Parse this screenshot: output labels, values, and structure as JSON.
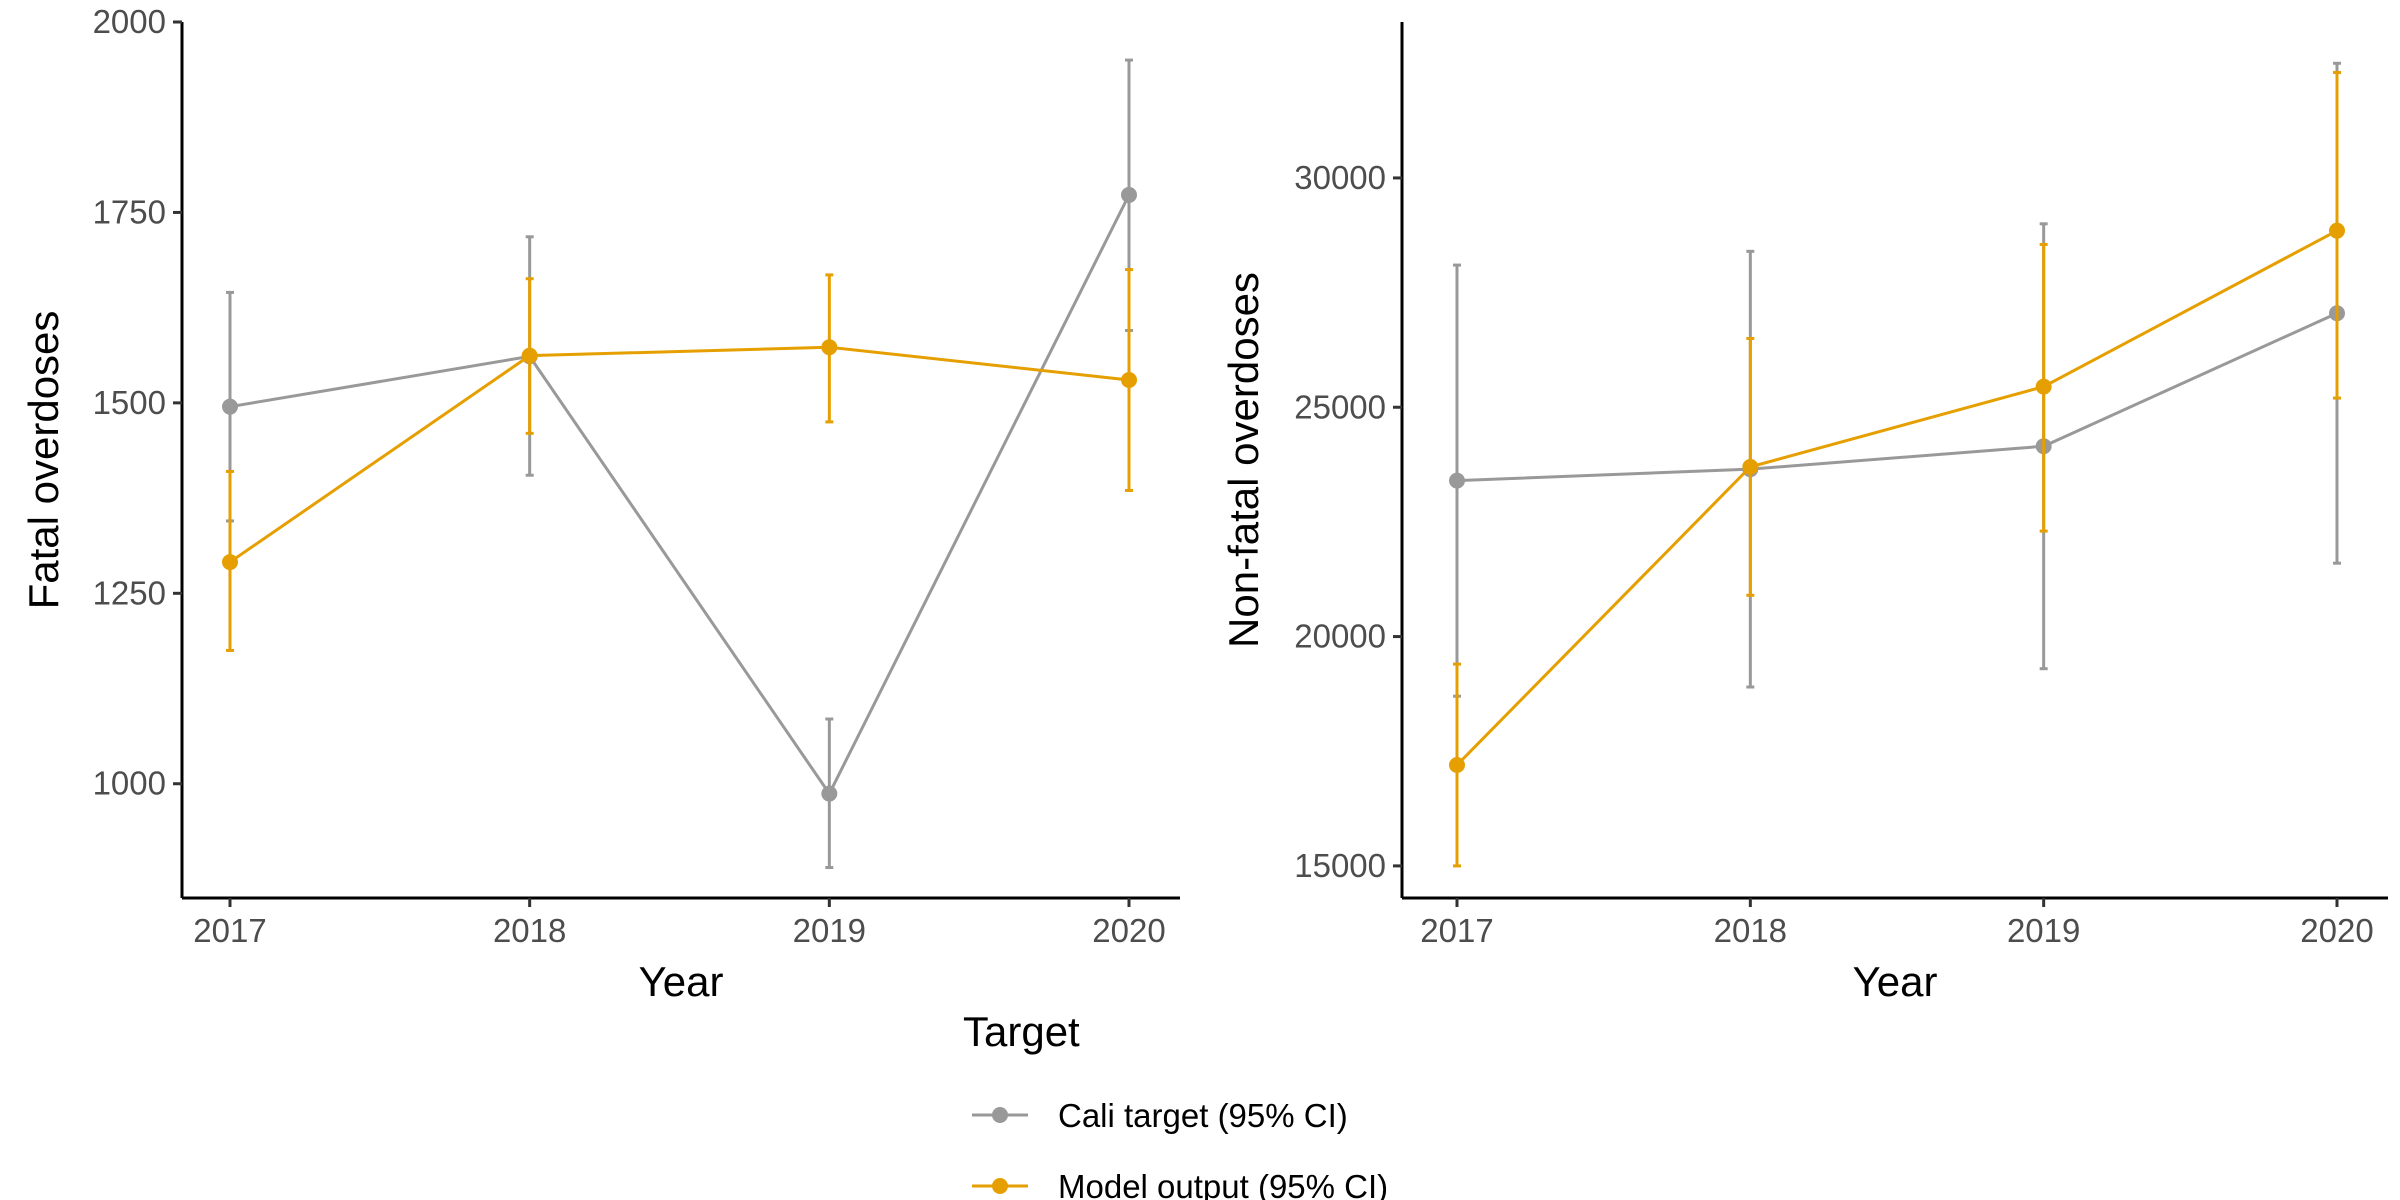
{
  "chart_data": [
    {
      "type": "line",
      "xlabel": "Year",
      "ylabel": "Fatal overdoses",
      "categories": [
        "2017",
        "2018",
        "2019",
        "2020"
      ],
      "ylim": [
        850,
        2000
      ],
      "yticks": [
        1000,
        1250,
        1500,
        1750,
        2000
      ],
      "grid": false,
      "series": [
        {
          "name": "Cali target (95% CI)",
          "color": "#999999",
          "values": [
            1495,
            1561,
            987,
            1773
          ],
          "lower": [
            1345,
            1405,
            890,
            1595
          ],
          "upper": [
            1645,
            1718,
            1085,
            1950
          ]
        },
        {
          "name": "Model output (95% CI)",
          "color": "#E69F00",
          "values": [
            1291,
            1562,
            1573,
            1530
          ],
          "lower": [
            1175,
            1460,
            1475,
            1385
          ],
          "upper": [
            1410,
            1663,
            1668,
            1675
          ]
        }
      ]
    },
    {
      "type": "line",
      "xlabel": "Year",
      "ylabel": "Non-fatal overdoses",
      "categories": [
        "2017",
        "2018",
        "2019",
        "2020"
      ],
      "ylim": [
        14300,
        33400
      ],
      "yticks": [
        15000,
        20000,
        25000,
        30000
      ],
      "grid": false,
      "series": [
        {
          "name": "Cali target (95% CI)",
          "color": "#999999",
          "values": [
            23400,
            23650,
            24150,
            27050
          ],
          "lower": [
            18700,
            18900,
            19300,
            21600
          ],
          "upper": [
            28100,
            28400,
            29000,
            32500
          ]
        },
        {
          "name": "Model output (95% CI)",
          "color": "#E69F00",
          "values": [
            17200,
            23700,
            25450,
            28850
          ],
          "lower": [
            15000,
            20900,
            22300,
            25200
          ],
          "upper": [
            19400,
            26500,
            28550,
            32300
          ]
        }
      ]
    }
  ],
  "legend": {
    "title": "Target",
    "placement": "bottom",
    "items": [
      {
        "label": "Cali target (95% CI)",
        "color": "#999999"
      },
      {
        "label": "Model output (95% CI)",
        "color": "#E69F00"
      }
    ]
  }
}
